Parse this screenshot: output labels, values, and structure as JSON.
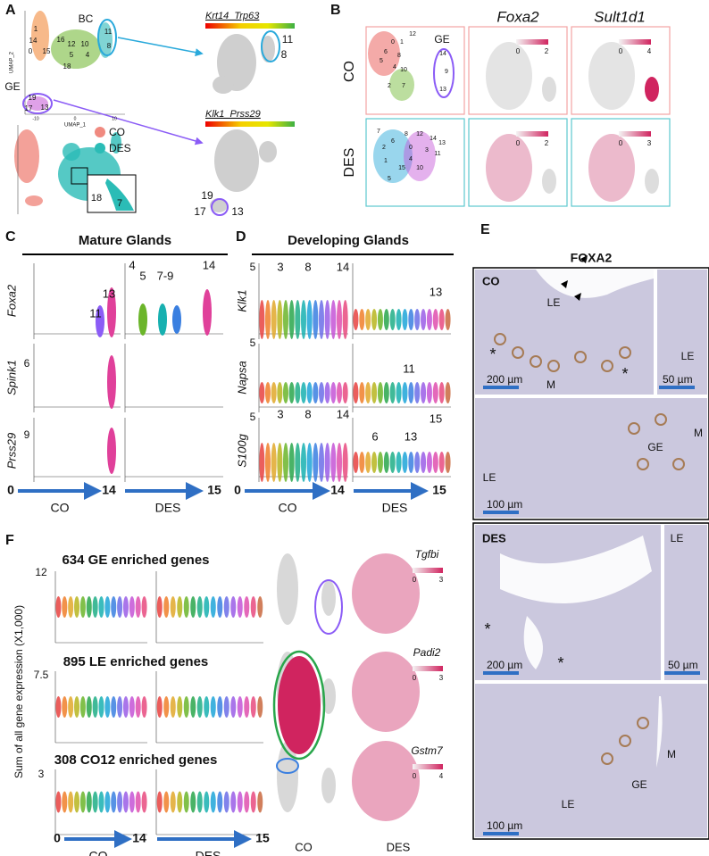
{
  "A": {
    "letter": "A",
    "umap_y": "UMAP_2",
    "umap_x": "UMAP_1",
    "bc": "BC",
    "ge": "GE",
    "axis_ticks": [
      "-10",
      "0",
      "10"
    ],
    "clusters": [
      "1",
      "14",
      "0",
      "15",
      "16",
      "12",
      "5",
      "10",
      "4",
      "18",
      "8",
      "11",
      "19",
      "17",
      "13"
    ],
    "legend": [
      "CO",
      "DES"
    ],
    "inset": [
      "18",
      "7"
    ],
    "gene1": "Krt14_Trp63",
    "gene1_clusters": [
      "11",
      "8"
    ],
    "gene2": "Klk1_Prss29",
    "gene2_clusters": [
      "19",
      "17",
      "13"
    ]
  },
  "B": {
    "letter": "B",
    "genes": [
      "Foxa2",
      "Sult1d1"
    ],
    "rows": [
      "CO",
      "DES"
    ],
    "ge": "GE",
    "co_clusters": [
      "12",
      "0",
      "1",
      "6",
      "5",
      "8",
      "4",
      "10",
      "2",
      "7",
      "14",
      "9",
      "13"
    ],
    "des_clusters": [
      "7",
      "2",
      "6",
      "8",
      "12",
      "14",
      "0",
      "3",
      "11",
      "13",
      "1",
      "15",
      "10",
      "4",
      "5"
    ],
    "colorbars": [
      [
        "0",
        "2"
      ],
      [
        "0",
        "4"
      ],
      [
        "0",
        "2"
      ],
      [
        "0",
        "3"
      ]
    ]
  },
  "C": {
    "letter": "C",
    "title": "Mature Glands",
    "genes": [
      "Foxa2",
      "Spink1",
      "Prss29"
    ],
    "ticks": [
      "6",
      "9"
    ],
    "labels": [
      "11",
      "13",
      "4",
      "5",
      "7-9",
      "14"
    ],
    "axis": {
      "start": "0",
      "co_end": "14",
      "co": "CO",
      "des": "DES",
      "des_end": "15"
    }
  },
  "D": {
    "letter": "D",
    "title": "Developing Glands",
    "genes": [
      "Klk1",
      "Napsa",
      "S100g"
    ],
    "ticks": [
      "5",
      "5",
      "5"
    ],
    "labels": [
      "3",
      "8",
      "14",
      "13",
      "11",
      "3",
      "8",
      "14",
      "6",
      "13",
      "15"
    ],
    "axis": {
      "start": "0",
      "co_end": "14",
      "co": "CO",
      "des": "DES",
      "des_end": "15"
    }
  },
  "E": {
    "letter": "E",
    "title": "FOXA2",
    "co": {
      "group": "CO",
      "labels": [
        "LE",
        "M",
        "*",
        "*",
        "LE",
        "LE",
        "GE",
        "M"
      ],
      "scales": [
        "200 µm",
        "50 µm",
        "100 µm"
      ]
    },
    "des": {
      "group": "DES",
      "labels": [
        "LE",
        "*",
        "*",
        "M",
        "GE",
        "LE"
      ],
      "scales": [
        "200 µm",
        "50 µm",
        "100 µm"
      ]
    }
  },
  "F": {
    "letter": "F",
    "titles": [
      "634 GE enriched genes",
      "895 LE enriched genes",
      "308 CO12 enriched genes"
    ],
    "ylabel": "Sum of all gene expression (X1,000)",
    "ticks": [
      "12",
      "7.5",
      "3"
    ],
    "axis": {
      "start": "0",
      "co_end": "14",
      "co": "CO",
      "des": "DES",
      "des_end": "15"
    },
    "genes": [
      "Tgfbi",
      "Padi2",
      "Gstm7"
    ],
    "colorbars": [
      [
        "0",
        "3"
      ],
      [
        "0",
        "3"
      ],
      [
        "0",
        "4"
      ]
    ],
    "columns": [
      "CO",
      "DES"
    ]
  }
}
